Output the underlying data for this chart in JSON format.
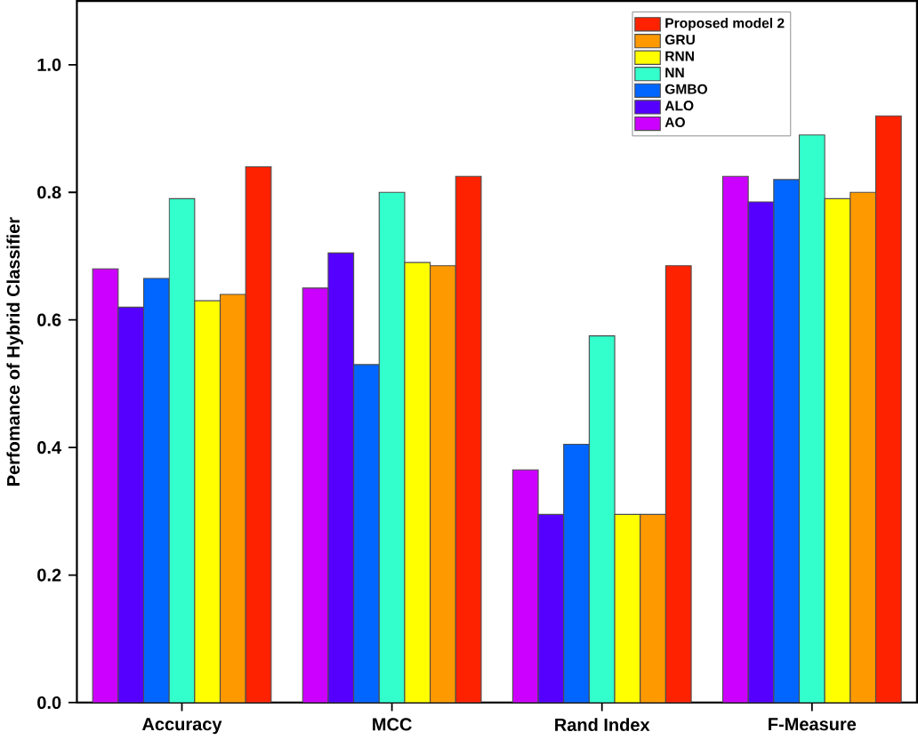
{
  "chart_data": {
    "type": "bar",
    "ylabel": "Perfomance of Hybrid Classifier",
    "categories": [
      "Accuracy",
      "MCC",
      "Rand Index",
      "F-Measure"
    ],
    "series": [
      {
        "name": "AO",
        "color": "#cc00ff",
        "values": [
          0.68,
          0.65,
          0.365,
          0.825
        ]
      },
      {
        "name": "ALO",
        "color": "#5500ff",
        "values": [
          0.62,
          0.705,
          0.295,
          0.785
        ]
      },
      {
        "name": "GMBO",
        "color": "#0066ff",
        "values": [
          0.665,
          0.53,
          0.405,
          0.82
        ]
      },
      {
        "name": "NN",
        "color": "#33ffcc",
        "values": [
          0.79,
          0.8,
          0.575,
          0.89
        ]
      },
      {
        "name": "RNN",
        "color": "#ffff00",
        "values": [
          0.63,
          0.69,
          0.295,
          0.79
        ]
      },
      {
        "name": "GRU",
        "color": "#ff9900",
        "values": [
          0.64,
          0.685,
          0.295,
          0.8
        ]
      },
      {
        "name": "Proposed model 2",
        "color": "#ff2200",
        "values": [
          0.84,
          0.825,
          0.685,
          0.92
        ]
      }
    ],
    "ylim": [
      0,
      1.1
    ],
    "yticks": [
      {
        "value": 0,
        "label": "0.0"
      },
      0.2,
      0.4,
      0.6,
      0.8,
      {
        "value": 1,
        "label": "1.0"
      }
    ],
    "legend": "top right",
    "grid": false
  }
}
